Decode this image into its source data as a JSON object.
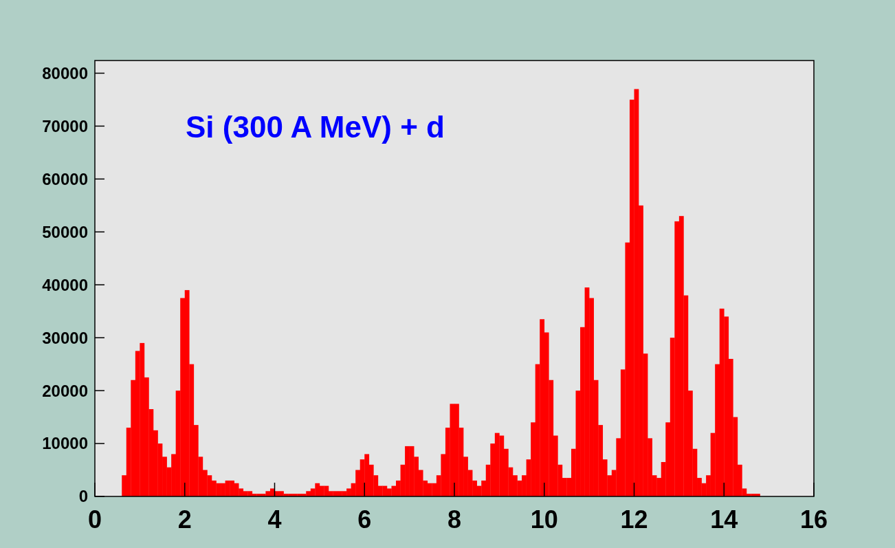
{
  "chart_data": {
    "type": "histogram",
    "title": "Si (300 A MeV) + d",
    "color": "#ff0000",
    "bins": [
      0.6,
      0.7,
      0.8,
      0.9,
      1.0,
      1.1,
      1.2,
      1.3,
      1.4,
      1.5,
      1.6,
      1.7,
      1.8,
      1.9,
      2.0,
      2.1,
      2.2,
      2.3,
      2.4,
      2.5,
      2.6,
      2.7,
      2.8,
      2.9,
      3.0,
      3.1,
      3.2,
      3.3,
      3.4,
      3.5,
      3.6,
      3.7,
      3.8,
      3.9,
      4.0,
      4.1,
      4.2,
      4.3,
      4.4,
      4.5,
      4.6,
      4.7,
      4.8,
      4.9,
      5.0,
      5.1,
      5.2,
      5.3,
      5.4,
      5.5,
      5.6,
      5.7,
      5.8,
      5.9,
      6.0,
      6.1,
      6.2,
      6.3,
      6.4,
      6.5,
      6.6,
      6.7,
      6.8,
      6.9,
      7.0,
      7.1,
      7.2,
      7.3,
      7.4,
      7.5,
      7.6,
      7.7,
      7.8,
      7.9,
      8.0,
      8.1,
      8.2,
      8.3,
      8.4,
      8.5,
      8.6,
      8.7,
      8.8,
      8.9,
      9.0,
      9.1,
      9.2,
      9.3,
      9.4,
      9.5,
      9.6,
      9.7,
      9.8,
      9.9,
      10.0,
      10.1,
      10.2,
      10.3,
      10.4,
      10.5,
      10.6,
      10.7,
      10.8,
      10.9,
      11.0,
      11.1,
      11.2,
      11.3,
      11.4,
      11.5,
      11.6,
      11.7,
      11.8,
      11.9,
      12.0,
      12.1,
      12.2,
      12.3,
      12.4,
      12.5,
      12.6,
      12.7,
      12.8,
      12.9,
      13.0,
      13.1,
      13.2,
      13.3,
      13.4,
      13.5,
      13.6,
      13.7,
      13.8,
      13.9,
      14.0,
      14.1,
      14.2,
      14.3,
      14.4,
      14.5,
      14.6,
      14.7,
      14.8
    ],
    "values": [
      4000,
      13000,
      22000,
      27500,
      29000,
      22500,
      16500,
      12500,
      10000,
      7500,
      5500,
      8000,
      20000,
      37500,
      39000,
      25000,
      13500,
      7500,
      5000,
      4000,
      3000,
      2500,
      2500,
      3000,
      3000,
      2500,
      1500,
      1000,
      1000,
      500,
      500,
      500,
      1000,
      1500,
      1000,
      1000,
      500,
      500,
      500,
      500,
      500,
      1000,
      1500,
      2500,
      2000,
      2000,
      1000,
      1000,
      1000,
      1000,
      1500,
      2500,
      5000,
      7000,
      8000,
      6000,
      4000,
      2000,
      2000,
      1500,
      2000,
      3000,
      6000,
      9500,
      9500,
      7500,
      5000,
      3000,
      2500,
      2500,
      4000,
      8000,
      13000,
      17500,
      17500,
      13000,
      7500,
      5000,
      3000,
      2000,
      3000,
      6000,
      10000,
      12000,
      11500,
      9000,
      5500,
      4000,
      3000,
      4000,
      7000,
      14000,
      25000,
      33500,
      31000,
      22000,
      11500,
      6000,
      3500,
      3500,
      9000,
      20000,
      32000,
      39500,
      37500,
      22000,
      13500,
      7000,
      4000,
      5000,
      11000,
      24000,
      48000,
      75000,
      77000,
      55000,
      27000,
      11000,
      4000,
      3500,
      6500,
      14000,
      30000,
      52000,
      53000,
      38000,
      20000,
      9000,
      3500,
      2500,
      4000,
      12000,
      25000,
      35500,
      34000,
      26000,
      15000,
      6000,
      1500,
      500,
      500,
      500
    ],
    "xlim": [
      0,
      16
    ],
    "xticks": [
      0,
      2,
      4,
      6,
      8,
      10,
      12,
      14,
      16
    ],
    "ylim": [
      0,
      82400
    ],
    "yticks": [
      0,
      10000,
      20000,
      30000,
      40000,
      50000,
      60000,
      70000,
      80000
    ],
    "grid": false
  }
}
